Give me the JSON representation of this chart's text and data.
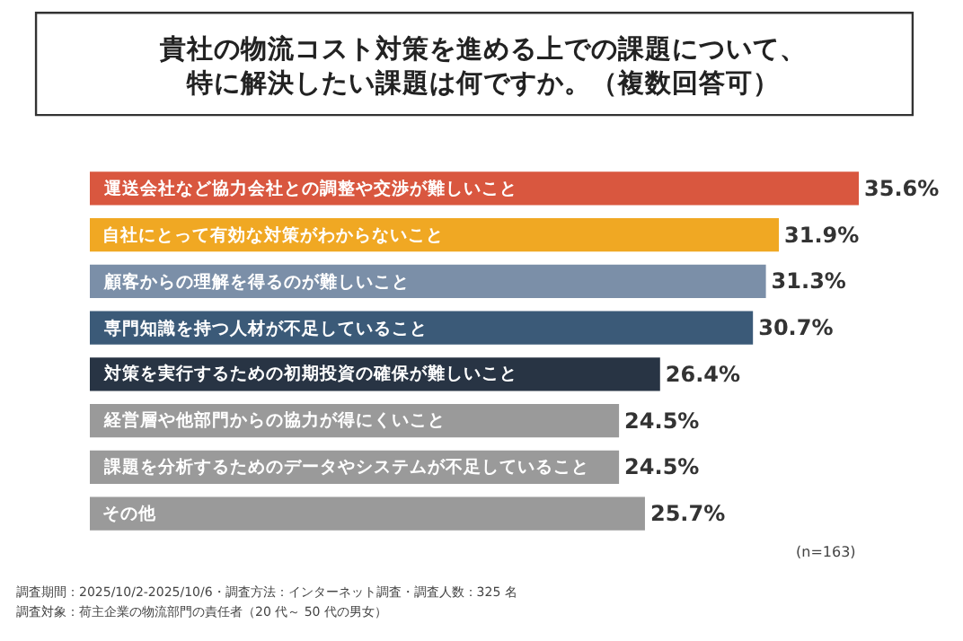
{
  "chart_data": {
    "type": "bar",
    "orientation": "horizontal",
    "title": "貴社の物流コスト対策を進める上での課題について、特に解決したい課題は何ですか。（複数回答可）",
    "categories": [
      "運送会社など協力会社との調整や交渉が難しいこと",
      "自社にとって有効な対策がわからないこと",
      "顧客からの理解を得るのが難しいこと",
      "専門知識を持つ人材が不足していること",
      "対策を実行するための初期投資の確保が難しいこと",
      "経営層や他部門からの協力が得にくいこと",
      "課題を分析するためのデータやシステムが不足していること",
      "その他"
    ],
    "values": [
      35.6,
      31.9,
      31.3,
      30.7,
      26.4,
      24.5,
      24.5,
      25.7
    ],
    "colors": [
      "#d9573f",
      "#f0a823",
      "#7b8fa8",
      "#3b5a78",
      "#283444",
      "#9a9a9a",
      "#9a9a9a",
      "#9a9a9a"
    ],
    "value_labels": [
      "35.6%",
      "31.9%",
      "31.3%",
      "30.7%",
      "26.4%",
      "24.5%",
      "24.5%",
      "25.7%"
    ],
    "annotations": [
      "(n=163)",
      "調査期間：2025/10/2-2025/10/6・調査方法：インターネット調査・調査人数：325 名",
      "調査対象：荷主企業の物流部門の責任者（20 代～ 50 代の男女）"
    ],
    "tick_labels": false
  }
}
